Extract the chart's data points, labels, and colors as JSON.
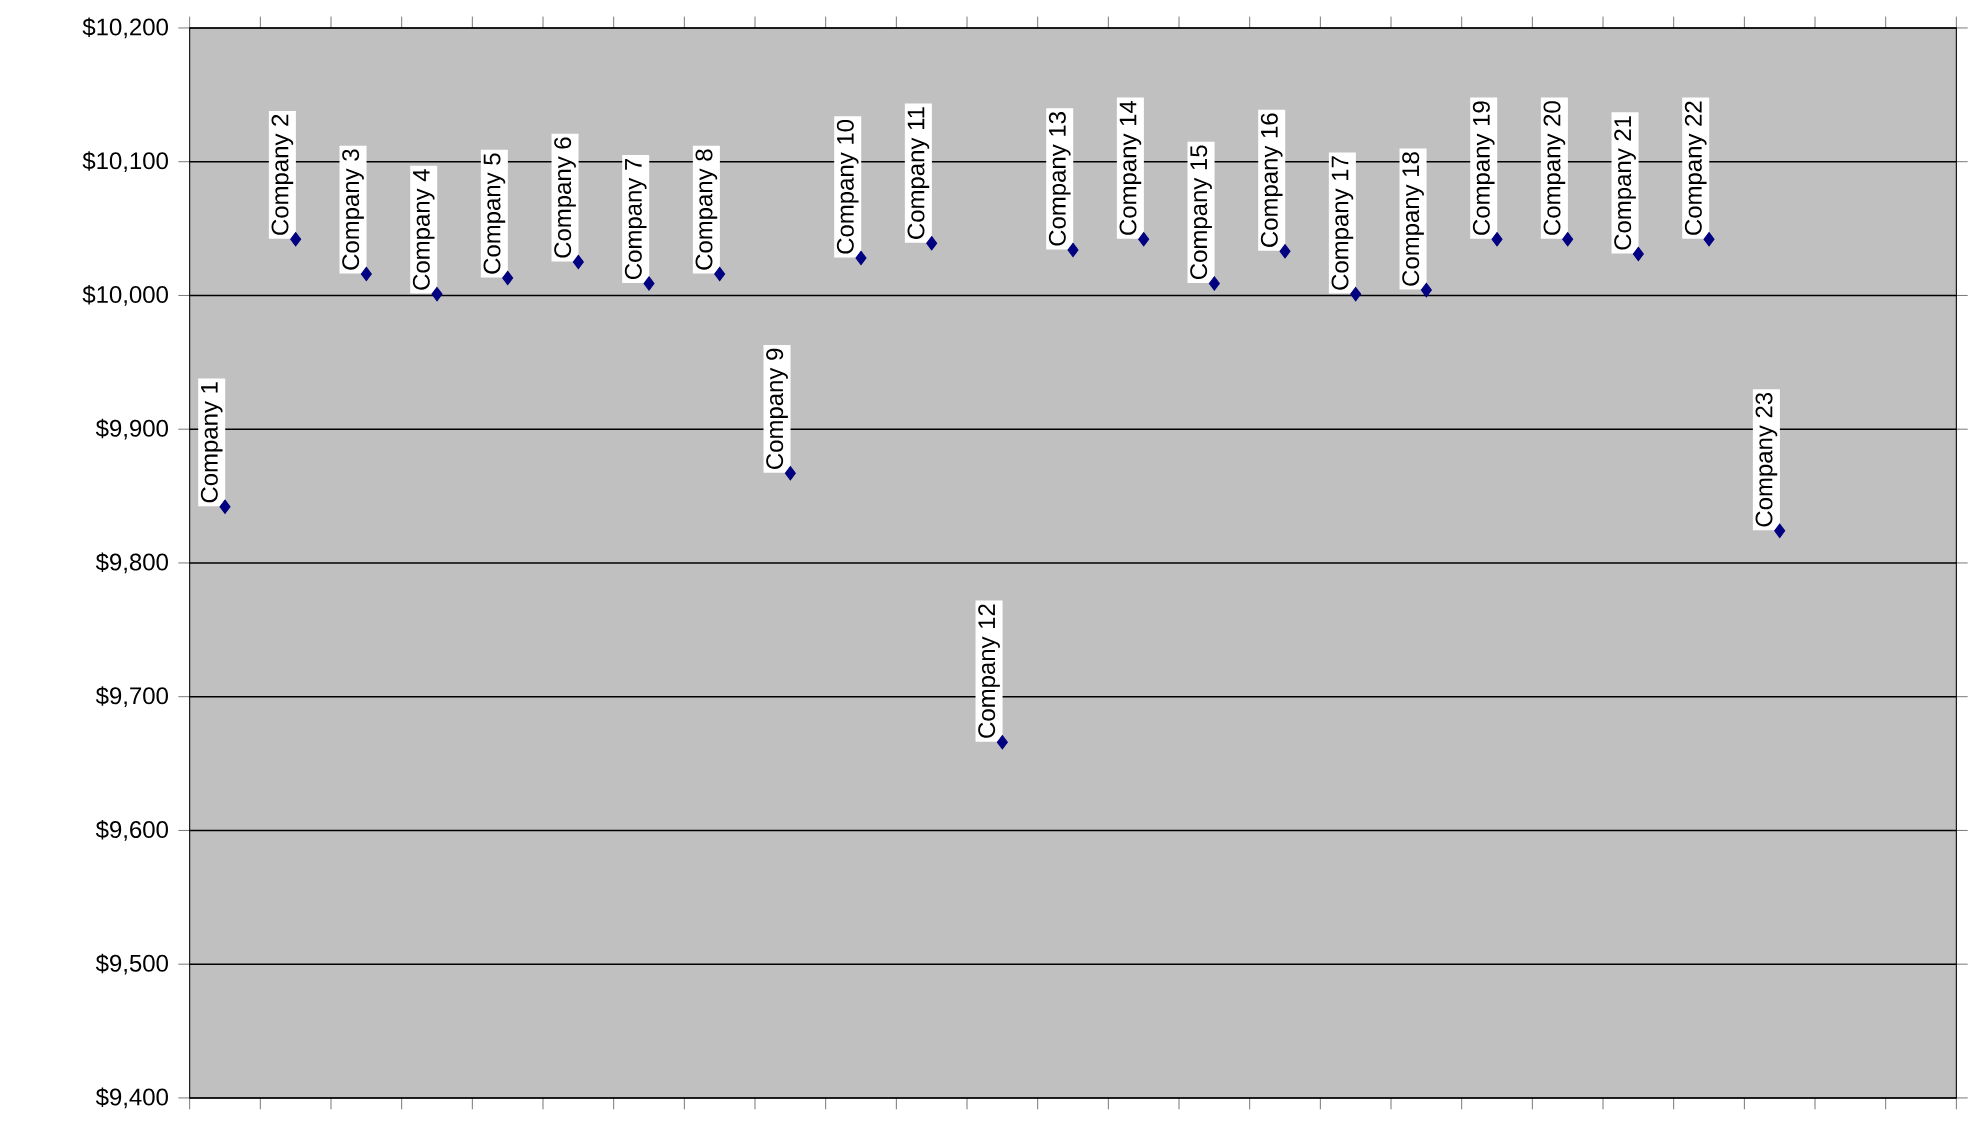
{
  "chart_data": {
    "type": "scatter",
    "marker": "diamond",
    "grid": "y",
    "categories": [
      null,
      null,
      null,
      null,
      null,
      null,
      null,
      null,
      null,
      null,
      null,
      null,
      null,
      null,
      null,
      null,
      null,
      null,
      null,
      null,
      null,
      null,
      null,
      null,
      null
    ],
    "series": [
      {
        "color": "#000080",
        "values": [
          9842,
          10042,
          10016,
          10001,
          10013,
          10025,
          10009,
          10016,
          9867,
          10028,
          10039,
          9666,
          10034,
          10042,
          10009,
          10033,
          10001,
          10004,
          10042,
          10042,
          10031,
          10042,
          9824,
          null,
          null
        ],
        "value_labels": [
          "Company 1",
          "Company 2",
          "Company 3",
          "Company 4",
          "Company 5",
          "Company 6",
          "Company 7",
          "Company 8",
          "Company 9",
          "Company 10",
          "Company 11",
          "Company 12",
          "Company 13",
          "Company 14",
          "Company 15",
          "Company 16",
          "Company 17",
          "Company 18",
          "Company 19",
          "Company 20",
          "Company 21",
          "Company 22",
          "Company 23",
          null,
          null
        ]
      }
    ],
    "ylim": [
      9400,
      10200
    ],
    "yticks": [
      {
        "value": 9400,
        "label": "$9,400"
      },
      {
        "value": 9500,
        "label": "$9,500"
      },
      {
        "value": 9600,
        "label": "$9,600"
      },
      {
        "value": 9700,
        "label": "$9,700"
      },
      {
        "value": 9800,
        "label": "$9,800"
      },
      {
        "value": 9900,
        "label": "$9,900"
      },
      {
        "value": 10000,
        "label": "$10,000"
      },
      {
        "value": 10100,
        "label": "$10,100"
      },
      {
        "value": 10200,
        "label": "$10,200"
      }
    ]
  }
}
